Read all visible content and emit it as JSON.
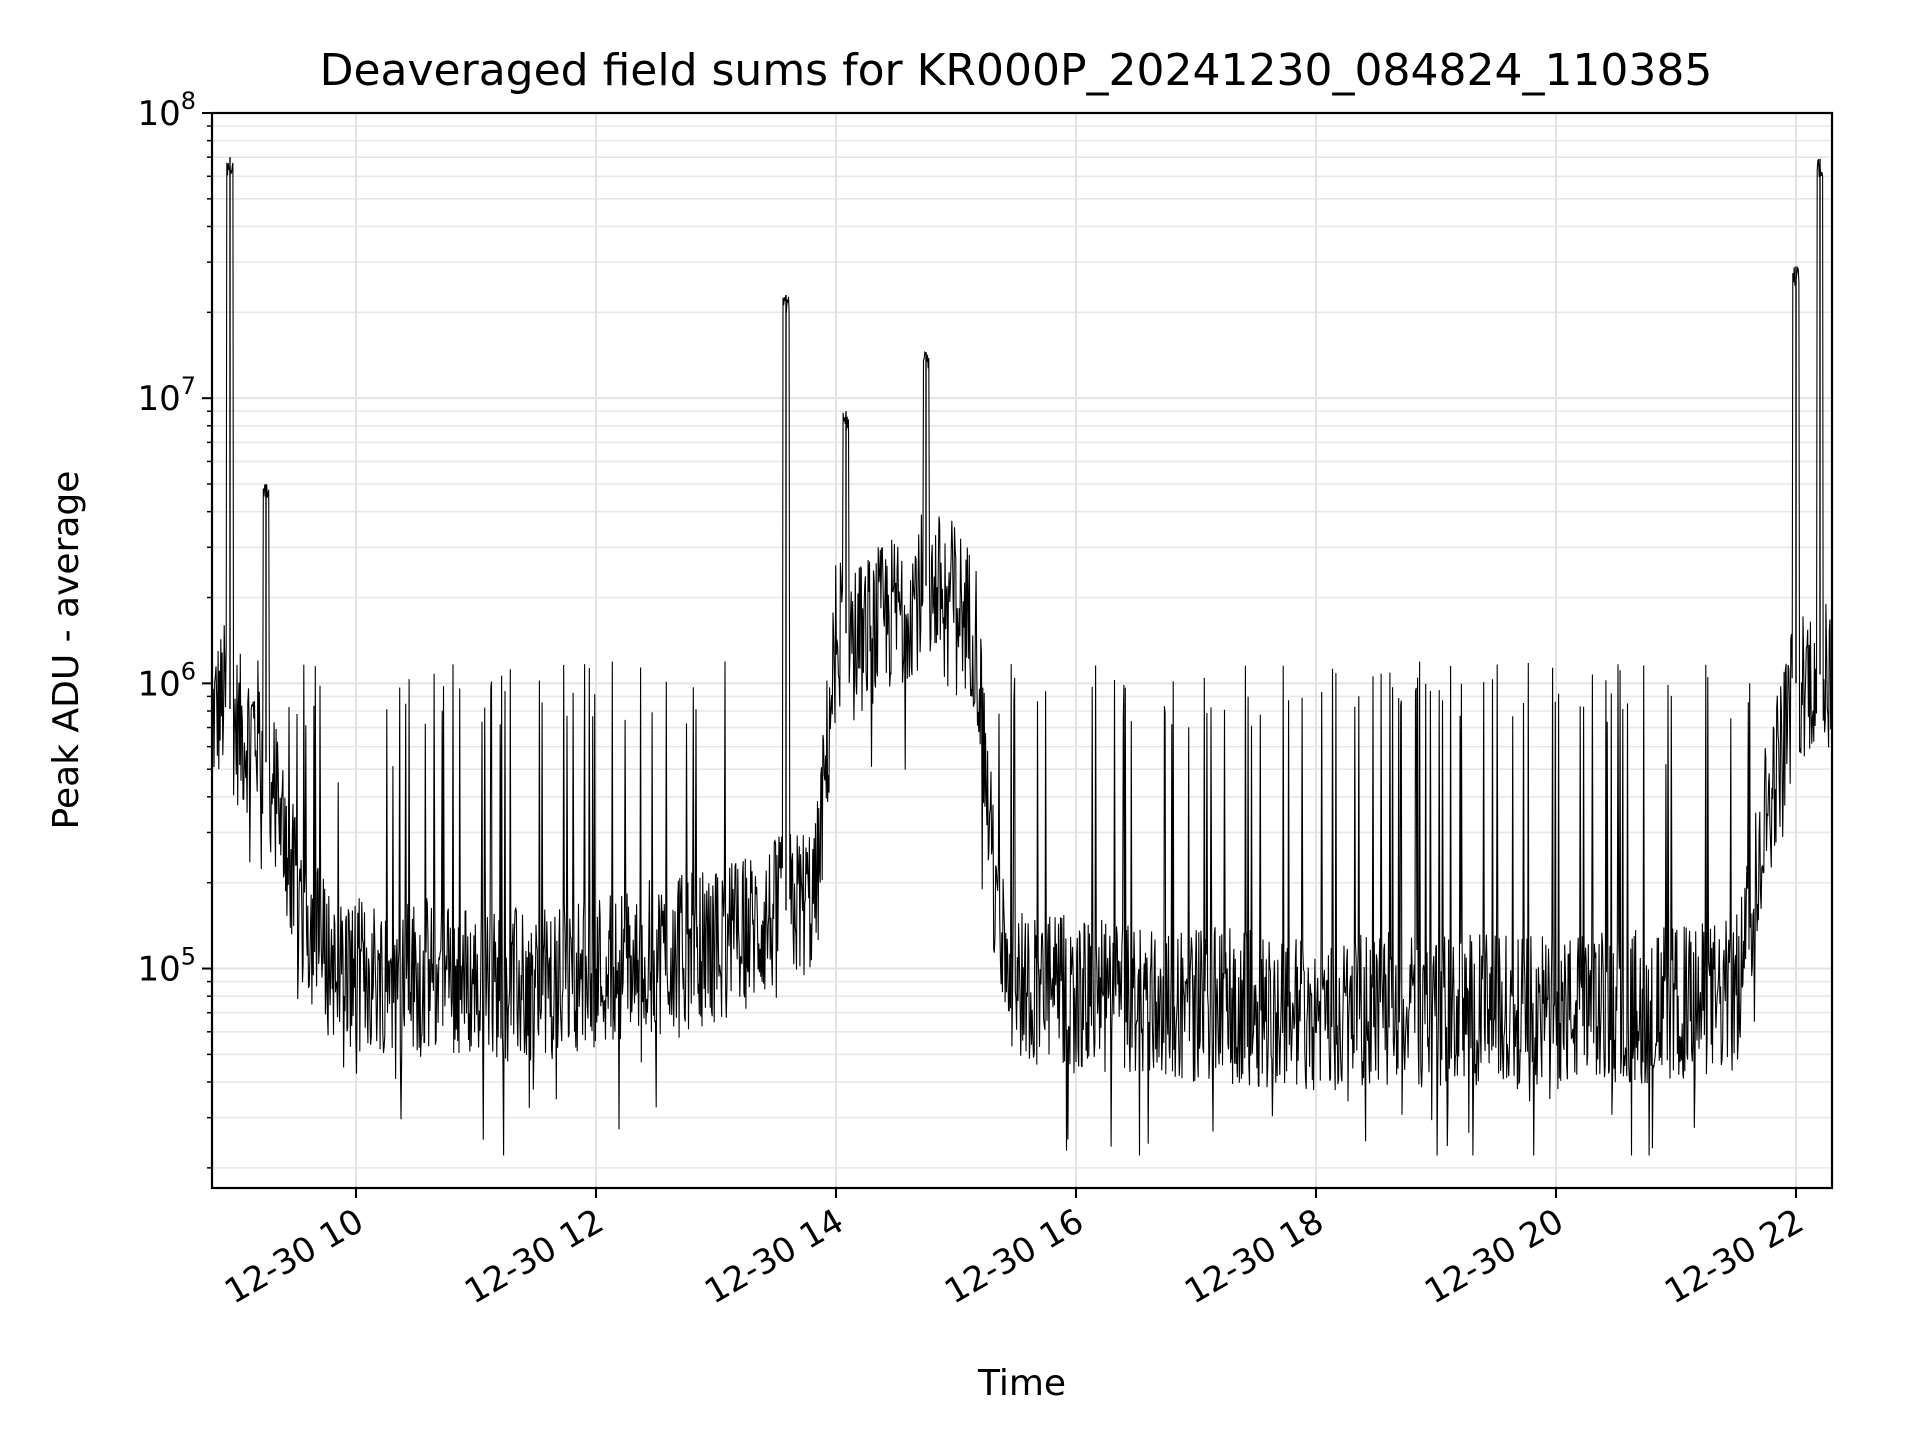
{
  "chart_data": {
    "type": "line",
    "title": "Deaveraged field sums for KR000P_20241230_084824_110385",
    "xlabel": "Time",
    "ylabel": "Peak ADU - average",
    "yscale": "log",
    "ylim": [
      17000,
      100000000
    ],
    "xlim": [
      "12-30 08:48",
      "12-30 22:18"
    ],
    "x_ticks": [
      "12-30 10",
      "12-30 12",
      "12-30 14",
      "12-30 16",
      "12-30 18",
      "12-30 20",
      "12-30 22"
    ],
    "y_ticks": [
      {
        "base": "10",
        "exp": "5",
        "value": 100000
      },
      {
        "base": "10",
        "exp": "6",
        "value": 1000000
      },
      {
        "base": "10",
        "exp": "7",
        "value": 10000000
      },
      {
        "base": "10",
        "exp": "8",
        "value": 100000000
      }
    ],
    "grid": "on (major and minor)",
    "line_color": "#000000",
    "series": [
      {
        "x": [
          "12-30 08:48",
          "12-30 08:55",
          "12-30 09:00",
          "12-30 09:05",
          "12-30 09:10",
          "12-30 09:20",
          "12-30 09:30",
          "12-30 09:45",
          "12-30 10:00",
          "12-30 10:30",
          "12-30 11:00",
          "12-30 11:30",
          "12-30 12:00",
          "12-30 12:30",
          "12-30 13:00",
          "12-30 13:20",
          "12-30 13:35",
          "12-30 13:50",
          "12-30 14:00",
          "12-30 14:15",
          "12-30 14:30",
          "12-30 14:45",
          "12-30 15:00",
          "12-30 15:10",
          "12-30 15:20",
          "12-30 15:30",
          "12-30 16:00",
          "12-30 17:00",
          "12-30 18:00",
          "12-30 19:00",
          "12-30 20:00",
          "12-30 21:00",
          "12-30 21:30",
          "12-30 21:45",
          "12-30 22:00",
          "12-30 22:10",
          "12-30 22:18"
        ],
        "y": [
          750000,
          900000,
          700000,
          650000,
          700000,
          400000,
          180000,
          110000,
          95000,
          95000,
          90000,
          85000,
          100000,
          110000,
          120000,
          140000,
          160000,
          180000,
          1500000,
          1500000,
          1800000,
          2200000,
          2000000,
          1500000,
          150000,
          90000,
          80000,
          75000,
          70000,
          72000,
          70000,
          75000,
          80000,
          350000,
          1000000,
          1100000,
          1000000
        ],
        "spikes_high": [
          {
            "x": "12-30 08:57",
            "y": 70000000
          },
          {
            "x": "12-30 09:15",
            "y": 5000000
          },
          {
            "x": "12-30 13:35",
            "y": 23000000
          },
          {
            "x": "12-30 14:05",
            "y": 9000000
          },
          {
            "x": "12-30 14:45",
            "y": 14500000
          },
          {
            "x": "12-30 22:00",
            "y": 29000000
          },
          {
            "x": "12-30 22:12",
            "y": 69000000
          }
        ]
      }
    ]
  }
}
